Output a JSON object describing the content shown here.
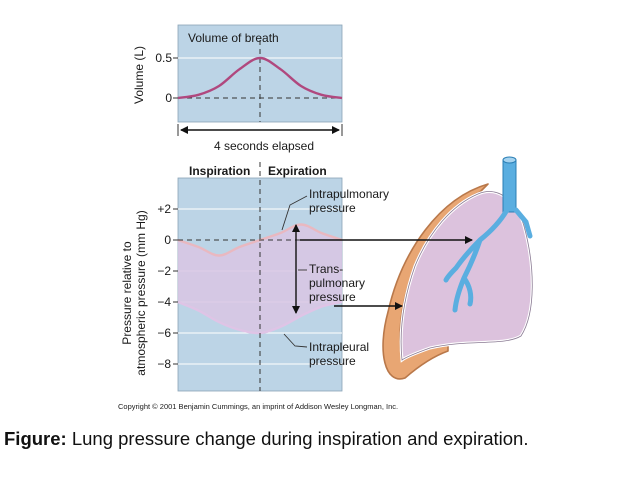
{
  "volume_chart": {
    "title": "Volume of breath",
    "ylabel": "Volume (L)",
    "ticks": [
      "0.5",
      "0"
    ],
    "elapsed_label": "4 seconds elapsed"
  },
  "pressure_chart": {
    "phase_inspiration": "Inspiration",
    "phase_expiration": "Expiration",
    "ylabel_line1": "Pressure relative to",
    "ylabel_line2": "atmospheric pressure (mm Hg)",
    "ticks": [
      "+2",
      "0",
      "−2",
      "−4",
      "−6",
      "−8"
    ],
    "label_intrapulmonary_1": "Intrapulmonary",
    "label_intrapulmonary_2": "pressure",
    "label_transpulmonary_1": "Trans-",
    "label_transpulmonary_2": "pulmonary",
    "label_transpulmonary_3": "pressure",
    "label_intrapleural_1": "Intrapleural",
    "label_intrapleural_2": "pressure"
  },
  "chart_data": [
    {
      "type": "line",
      "title": "Volume of breath",
      "xlabel": "4 seconds elapsed",
      "ylabel": "Volume (L)",
      "ylim": [
        -0.15,
        0.75
      ],
      "x": [
        0,
        0.5,
        1,
        1.5,
        2,
        2.5,
        3,
        3.5,
        4
      ],
      "series": [
        {
          "values": [
            0,
            0.04,
            0.15,
            0.36,
            0.5,
            0.36,
            0.15,
            0.04,
            0
          ]
        }
      ],
      "grid": true,
      "colors": {
        "line": "#b0487e",
        "background": "#bcd4e6"
      }
    },
    {
      "type": "line",
      "ylabel": "Pressure relative to atmospheric pressure (mm Hg)",
      "ylim": [
        -8.8,
        3.5
      ],
      "x": [
        0,
        0.5,
        1,
        1.5,
        2,
        2.5,
        3,
        3.5,
        4
      ],
      "series": [
        {
          "name": "Intrapulmonary pressure",
          "values": [
            0,
            -0.45,
            -1,
            -0.45,
            0,
            0.45,
            1,
            0.45,
            0
          ]
        },
        {
          "name": "Intrapleural pressure",
          "values": [
            -4,
            -4.55,
            -5.3,
            -5.8,
            -6,
            -5.6,
            -4.9,
            -4.3,
            -4
          ]
        }
      ],
      "grid": true,
      "colors": {
        "intrapulmonary": "#e9b8c0",
        "intrapleural": "#dfc4e6",
        "background": "#bcd4e6"
      }
    }
  ],
  "copyright": "Copyright © 2001 Benjamin Cummings, an imprint of Addison Wesley Longman, Inc.",
  "caption": {
    "bold": "Figure:",
    "text": " Lung pressure change during inspiration and expiration."
  }
}
